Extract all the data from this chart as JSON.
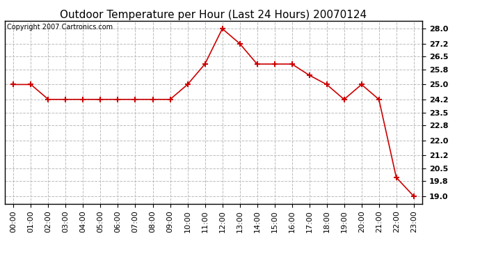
{
  "title": "Outdoor Temperature per Hour (Last 24 Hours) 20070124",
  "copyright_text": "Copyright 2007 Cartronics.com",
  "hours": [
    "00:00",
    "01:00",
    "02:00",
    "03:00",
    "04:00",
    "05:00",
    "06:00",
    "07:00",
    "08:00",
    "09:00",
    "10:00",
    "11:00",
    "12:00",
    "13:00",
    "14:00",
    "15:00",
    "16:00",
    "17:00",
    "18:00",
    "19:00",
    "20:00",
    "21:00",
    "22:00",
    "23:00"
  ],
  "temperatures": [
    25.0,
    25.0,
    24.2,
    24.2,
    24.2,
    24.2,
    24.2,
    24.2,
    24.2,
    24.2,
    25.0,
    26.1,
    28.0,
    27.2,
    26.1,
    26.1,
    26.1,
    25.5,
    25.0,
    24.2,
    25.0,
    24.2,
    20.0,
    19.0
  ],
  "line_color": "#cc0000",
  "marker": "+",
  "marker_size": 6,
  "marker_edge_width": 1.5,
  "line_width": 1.2,
  "bg_color": "#ffffff",
  "plot_bg_color": "#ffffff",
  "grid_color": "#bbbbbb",
  "grid_linestyle": "--",
  "ylim_min": 18.6,
  "ylim_max": 28.42,
  "yticks": [
    19.0,
    19.8,
    20.5,
    21.2,
    22.0,
    22.8,
    23.5,
    24.2,
    25.0,
    25.8,
    26.5,
    27.2,
    28.0
  ],
  "title_fontsize": 11,
  "tick_fontsize": 8,
  "copyright_fontsize": 7
}
